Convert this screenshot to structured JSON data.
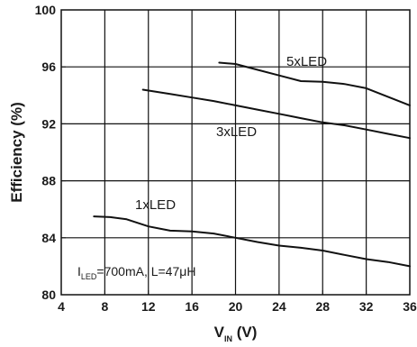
{
  "chart_data": {
    "type": "line",
    "xlabel": {
      "main": "V",
      "sub": "IN",
      "unit": " (V)"
    },
    "ylabel": "Efficiency (%)",
    "xlim": [
      4,
      36
    ],
    "ylim": [
      80,
      100
    ],
    "xticks": [
      4,
      8,
      12,
      16,
      20,
      24,
      28,
      32,
      36
    ],
    "yticks": [
      80,
      84,
      88,
      92,
      96,
      100
    ],
    "grid": true,
    "series": [
      {
        "name": "1xLED",
        "x": [
          7,
          8.5,
          10,
          12,
          14,
          16,
          18,
          20,
          22,
          24,
          26,
          28,
          30,
          32,
          34,
          36
        ],
        "y": [
          85.5,
          85.45,
          85.3,
          84.8,
          84.5,
          84.45,
          84.3,
          84.0,
          83.7,
          83.45,
          83.3,
          83.1,
          82.8,
          82.5,
          82.3,
          82.0
        ]
      },
      {
        "name": "3xLED",
        "x": [
          11.5,
          14,
          16,
          18,
          20,
          22,
          24,
          26,
          28,
          30,
          32,
          34,
          36
        ],
        "y": [
          94.4,
          94.1,
          93.85,
          93.6,
          93.3,
          93.0,
          92.7,
          92.4,
          92.1,
          91.9,
          91.6,
          91.3,
          91.0
        ]
      },
      {
        "name": "5xLED",
        "x": [
          18.5,
          20,
          22,
          24,
          26,
          28,
          30,
          32,
          34,
          36
        ],
        "y": [
          96.3,
          96.2,
          95.8,
          95.4,
          95.0,
          94.95,
          94.8,
          94.5,
          93.9,
          93.3
        ]
      }
    ],
    "annotation": {
      "i_main": "I",
      "i_sub": "LED",
      "rest": "=700mA, L=47μH"
    }
  }
}
